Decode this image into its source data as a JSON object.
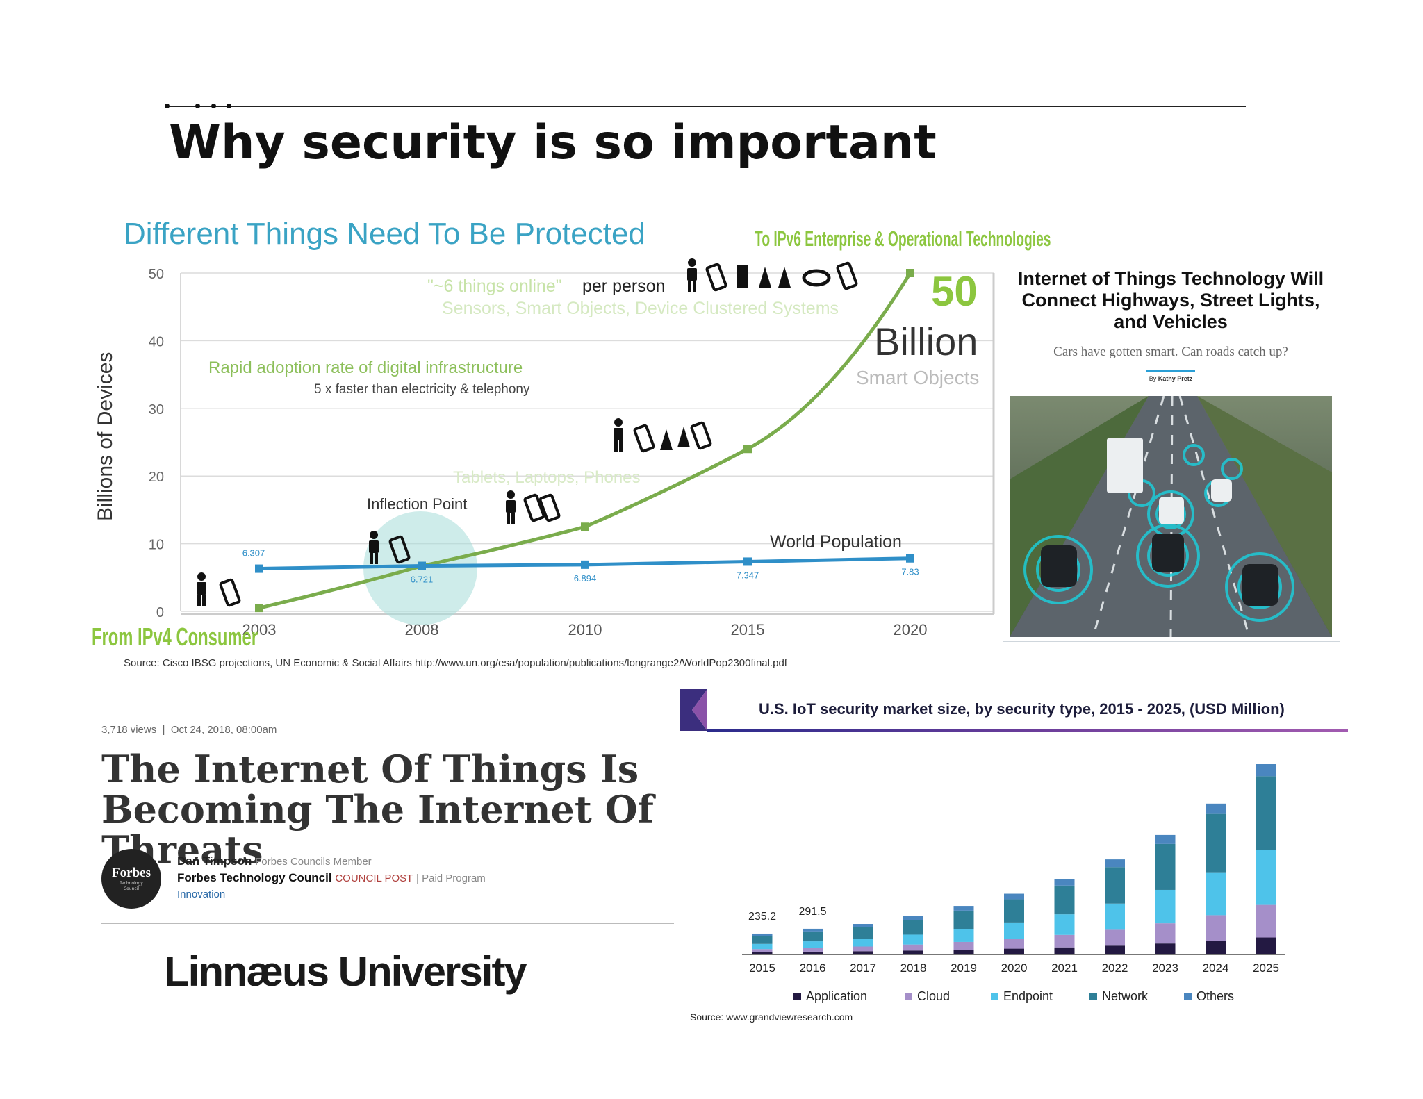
{
  "slide": {
    "title": "Why security is so important",
    "footer_logo": "Linnæus University"
  },
  "chart_data": [
    {
      "type": "line",
      "title": "Different Things Need To Be Protected",
      "ylabel": "Billions of Devices",
      "ylim": [
        0,
        50
      ],
      "yticks": [
        "0",
        "10",
        "20",
        "30",
        "40",
        "50"
      ],
      "categories": [
        "2003",
        "2008",
        "2010",
        "2015",
        "2020"
      ],
      "series": [
        {
          "name": "Smart Objects",
          "color": "#7aac4c",
          "values": [
            0.5,
            6.7,
            12.5,
            24,
            50
          ]
        },
        {
          "name": "World Population",
          "color": "#2f8fc8",
          "values": [
            6.307,
            6.721,
            6.894,
            7.347,
            7.83
          ],
          "point_labels": [
            "6.307",
            "6.721",
            "6.894",
            "7.347",
            "7.83"
          ]
        }
      ],
      "annotations": {
        "ipv6": "To IPv6 Enterprise & Operational Technologies",
        "ipv4": "From IPv4 Consumer",
        "things_online_quote": "\"~6 things online\"",
        "things_online_rest": "per person",
        "sensors": "Sensors, Smart Objects, Device Clustered Systems",
        "fifty": "50",
        "billion": "Billion",
        "smart_objects": "Smart Objects",
        "rapid": "Rapid adoption rate of digital infrastructure",
        "faster": "5 x faster than electricity & telephony",
        "tablets": "Tablets, Laptops, Phones",
        "inflection": "Inflection Point",
        "world_population": "World Population"
      },
      "source": "Source: Cisco IBSG projections, UN Economic & Social Affairs http://www.un.org/esa/population/publications/longrange2/WorldPop2300final.pdf"
    },
    {
      "type": "bar",
      "title": "U.S. IoT security market size, by security type, 2015 - 2025, (USD Million)",
      "stacked": true,
      "categories": [
        "2015",
        "2016",
        "2017",
        "2018",
        "2019",
        "2020",
        "2021",
        "2022",
        "2023",
        "2024",
        "2025"
      ],
      "total_labels": [
        "235.2",
        "291.5",
        "",
        "",
        "",
        "",
        "",
        "",
        "",
        "",
        ""
      ],
      "series": [
        {
          "name": "Application",
          "color": "#231942",
          "values": [
            20,
            25,
            30,
            38,
            48,
            60,
            75,
            95,
            120,
            150,
            190
          ]
        },
        {
          "name": "Cloud",
          "color": "#a58fc9",
          "values": [
            35,
            45,
            55,
            70,
            90,
            115,
            145,
            185,
            235,
            300,
            380
          ]
        },
        {
          "name": "Endpoint",
          "color": "#4ec3ea",
          "values": [
            60,
            75,
            90,
            115,
            150,
            190,
            240,
            305,
            390,
            500,
            640
          ]
        },
        {
          "name": "Network",
          "color": "#2e7f97",
          "values": [
            95,
            115,
            135,
            170,
            215,
            270,
            335,
            425,
            535,
            680,
            860
          ]
        },
        {
          "name": "Others",
          "color": "#4a86bf",
          "values": [
            25,
            32,
            38,
            45,
            55,
            65,
            75,
            90,
            105,
            120,
            140
          ]
        }
      ],
      "legend_position": "bottom",
      "source": "Source: www.grandviewresearch.com"
    }
  ],
  "article_roads": {
    "title_lines": [
      "Internet of Things Technology Will",
      "Connect Highways, Street Lights,",
      "and Vehicles"
    ],
    "subtitle": "Cars have gotten smart. Can roads catch up?",
    "byline_prefix": "By",
    "byline_name": "Kathy Pretz"
  },
  "article_forbes": {
    "views": "3,718 views",
    "sep": "|",
    "date": "Oct 24, 2018, 08:00am",
    "title_lines": [
      "The Internet Of Things Is",
      "Becoming The Internet Of Threats"
    ],
    "logo_word": "Forbes",
    "logo_sub_1": "Technology",
    "logo_sub_2": "Council",
    "author": "Dan Timpson",
    "author_role": "Forbes Councils Member",
    "council": "Forbes Technology Council",
    "council_post": "COUNCIL POST",
    "paid": "| Paid Program",
    "section": "Innovation"
  }
}
